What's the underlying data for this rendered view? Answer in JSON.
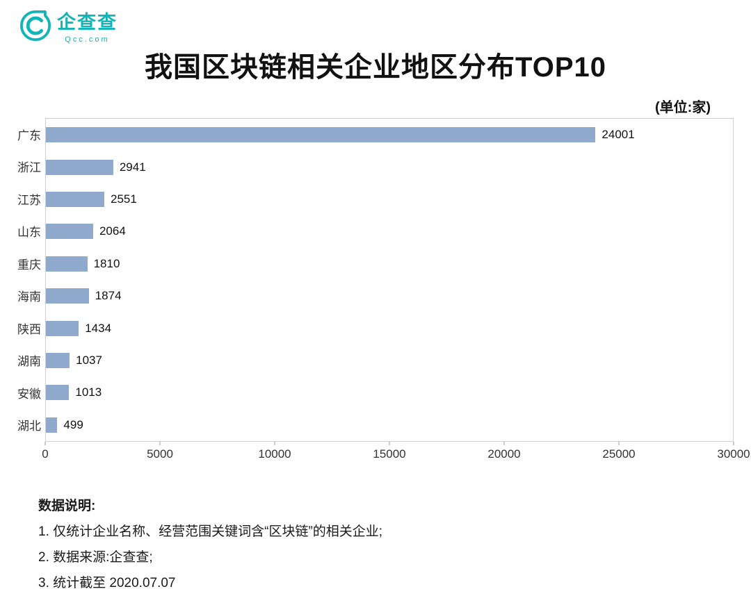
{
  "logo": {
    "brand": "企查查",
    "domain": "Qcc.com",
    "color": "#12b5b7"
  },
  "title": "我国区块链相关企业地区分布TOP10",
  "unit_label": "(单位:家)",
  "chart_data": {
    "type": "bar",
    "orientation": "horizontal",
    "title": "我国区块链相关企业地区分布TOP10",
    "unit": "家",
    "categories": [
      "广东",
      "浙江",
      "江苏",
      "山东",
      "重庆",
      "海南",
      "陕西",
      "湖南",
      "安徽",
      "湖北"
    ],
    "values": [
      24001,
      2941,
      2551,
      2064,
      1810,
      1874,
      1434,
      1037,
      1013,
      499
    ],
    "xlim": [
      0,
      30000
    ],
    "x_ticks": [
      0,
      5000,
      10000,
      15000,
      20000,
      25000,
      30000
    ],
    "bar_color": "#8faacc",
    "grid": false,
    "legend": "none",
    "value_labels": "outside-end"
  },
  "notes": {
    "heading": "数据说明:",
    "items": [
      "1. 仅统计企业名称、经营范围关键词含“区块链”的相关企业;",
      "2. 数据来源:企查查;",
      "3. 统计截至 2020.07.07"
    ]
  }
}
